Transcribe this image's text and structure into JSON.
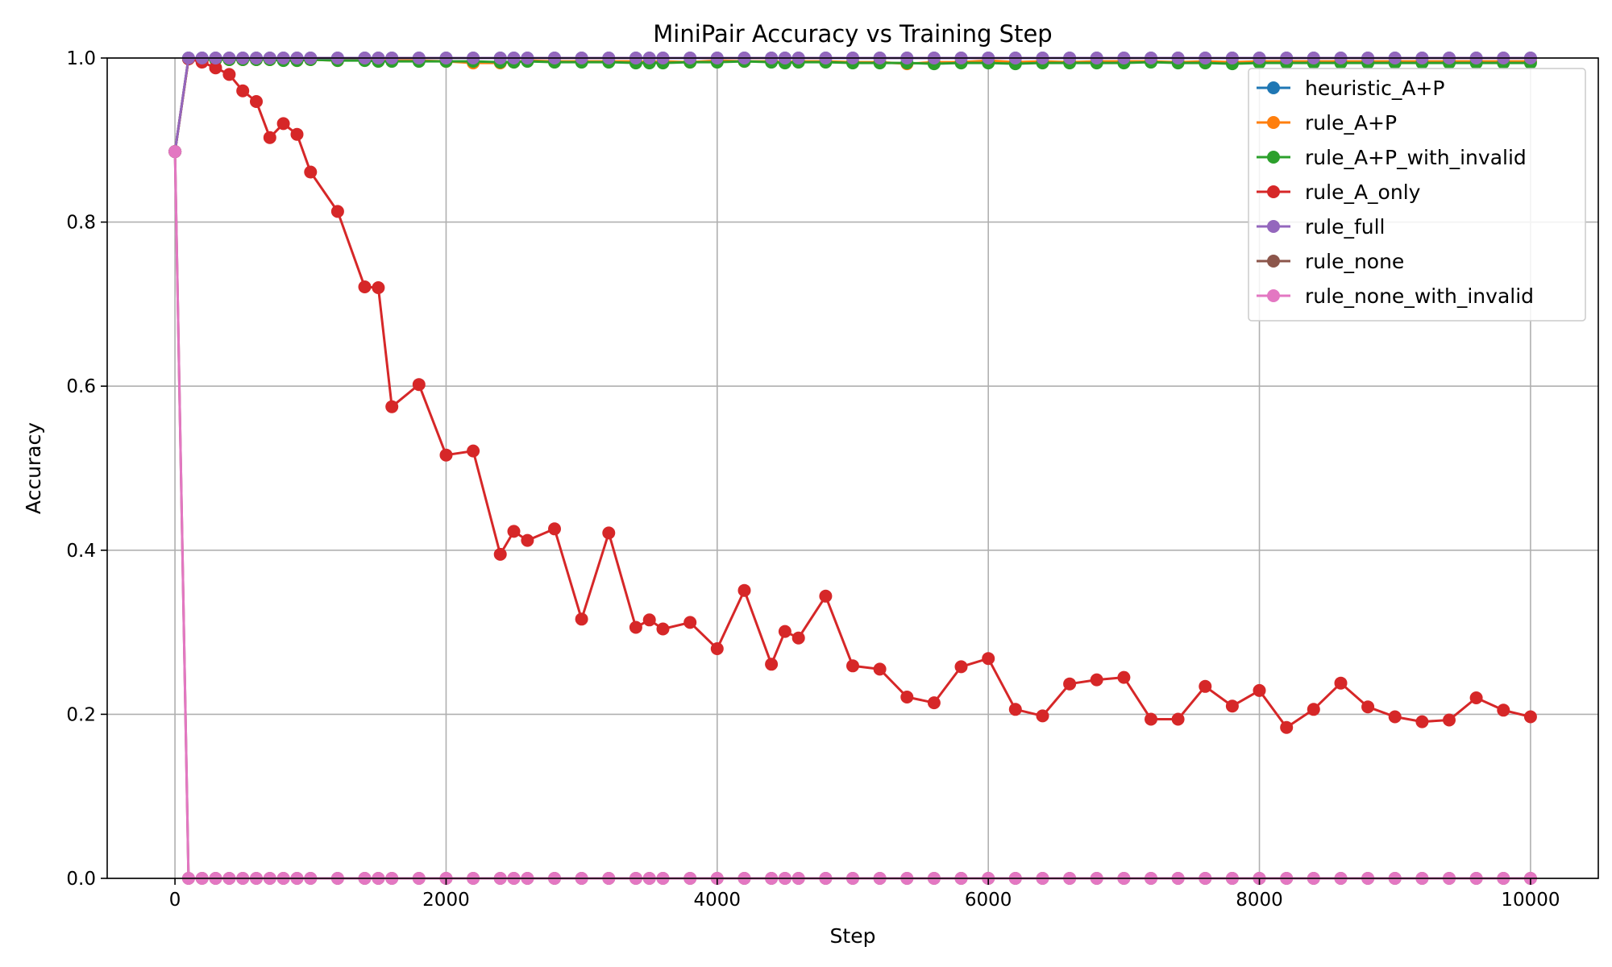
{
  "chart_data": {
    "type": "line",
    "title": "MiniPair Accuracy vs Training Step",
    "xlabel": "Step",
    "ylabel": "Accuracy",
    "xlim": [
      -500,
      10500
    ],
    "ylim": [
      0,
      1
    ],
    "xticks": [
      0,
      2000,
      4000,
      6000,
      8000,
      10000
    ],
    "xtick_labels": [
      "0",
      "2000",
      "4000",
      "6000",
      "8000",
      "10000"
    ],
    "yticks": [
      0.0,
      0.2,
      0.4,
      0.6,
      0.8,
      1.0
    ],
    "ytick_labels": [
      "0.0",
      "0.2",
      "0.4",
      "0.6",
      "0.8",
      "1.0"
    ],
    "grid": true,
    "legend_position": "top-right",
    "x": [
      0,
      100,
      200,
      300,
      400,
      500,
      600,
      700,
      800,
      900,
      1000,
      1200,
      1400,
      1500,
      1600,
      1800,
      2000,
      2200,
      2400,
      2500,
      2600,
      2800,
      3000,
      3200,
      3400,
      3500,
      3600,
      3800,
      4000,
      4200,
      4400,
      4500,
      4600,
      4800,
      5000,
      5200,
      5400,
      5600,
      5800,
      6000,
      6200,
      6400,
      6600,
      6800,
      7000,
      7200,
      7400,
      7600,
      7800,
      8000,
      8200,
      8400,
      8600,
      8800,
      9000,
      9200,
      9400,
      9600,
      9800,
      10000
    ],
    "series": [
      {
        "name": "heuristic_A+P",
        "color": "#1f77b4",
        "values": [
          0.886,
          1.0,
          1.0,
          1.0,
          1.0,
          1.0,
          1.0,
          1.0,
          1.0,
          1.0,
          1.0,
          1.0,
          1.0,
          1.0,
          1.0,
          1.0,
          1.0,
          1.0,
          1.0,
          1.0,
          1.0,
          1.0,
          1.0,
          1.0,
          1.0,
          1.0,
          1.0,
          1.0,
          1.0,
          1.0,
          1.0,
          1.0,
          1.0,
          1.0,
          1.0,
          1.0,
          1.0,
          1.0,
          1.0,
          1.0,
          1.0,
          1.0,
          1.0,
          1.0,
          1.0,
          1.0,
          1.0,
          1.0,
          1.0,
          1.0,
          1.0,
          1.0,
          1.0,
          1.0,
          1.0,
          1.0,
          1.0,
          1.0,
          1.0,
          1.0
        ]
      },
      {
        "name": "rule_A+P",
        "color": "#ff7f0e",
        "values": [
          0.886,
          0.999,
          0.999,
          0.998,
          0.998,
          0.998,
          0.998,
          0.998,
          0.998,
          0.997,
          0.998,
          0.997,
          0.998,
          0.997,
          0.997,
          0.997,
          0.996,
          0.994,
          0.994,
          0.995,
          0.997,
          0.996,
          0.996,
          0.996,
          0.996,
          0.995,
          0.996,
          0.995,
          0.997,
          0.996,
          0.996,
          0.995,
          0.996,
          0.996,
          0.995,
          0.995,
          0.993,
          0.995,
          0.995,
          0.997,
          0.995,
          0.996,
          0.995,
          0.996,
          0.996,
          0.996,
          0.995,
          0.996,
          0.995,
          0.996,
          0.996,
          0.996,
          0.996,
          0.996,
          0.996,
          0.996,
          0.996,
          0.996,
          0.996,
          0.996
        ]
      },
      {
        "name": "rule_A+P_with_invalid",
        "color": "#2ca02c",
        "values": [
          0.886,
          0.999,
          0.998,
          0.998,
          0.998,
          0.998,
          0.998,
          0.998,
          0.997,
          0.997,
          0.998,
          0.997,
          0.997,
          0.996,
          0.996,
          0.996,
          0.996,
          0.996,
          0.995,
          0.995,
          0.996,
          0.995,
          0.995,
          0.995,
          0.994,
          0.994,
          0.994,
          0.995,
          0.995,
          0.996,
          0.995,
          0.994,
          0.995,
          0.995,
          0.994,
          0.994,
          0.994,
          0.993,
          0.994,
          0.994,
          0.993,
          0.994,
          0.994,
          0.994,
          0.994,
          0.995,
          0.994,
          0.994,
          0.993,
          0.994,
          0.994,
          0.994,
          0.994,
          0.994,
          0.994,
          0.994,
          0.994,
          0.994,
          0.994,
          0.994
        ]
      },
      {
        "name": "rule_A_only",
        "color": "#d62728",
        "values": [
          0.886,
          0.999,
          0.995,
          0.988,
          0.98,
          0.96,
          0.947,
          0.903,
          0.92,
          0.907,
          0.861,
          0.813,
          0.721,
          0.72,
          0.575,
          0.602,
          0.516,
          0.521,
          0.395,
          0.423,
          0.412,
          0.426,
          0.316,
          0.421,
          0.306,
          0.315,
          0.304,
          0.312,
          0.28,
          0.351,
          0.261,
          0.301,
          0.293,
          0.344,
          0.259,
          0.255,
          0.221,
          0.214,
          0.258,
          0.268,
          0.206,
          0.198,
          0.237,
          0.242,
          0.245,
          0.194,
          0.194,
          0.234,
          0.21,
          0.229,
          0.184,
          0.206,
          0.238,
          0.209,
          0.197,
          0.191,
          0.193,
          0.22,
          0.205,
          0.197
        ]
      },
      {
        "name": "rule_full",
        "color": "#9467bd",
        "values": [
          0.886,
          1.0,
          1.0,
          1.0,
          1.0,
          1.0,
          1.0,
          1.0,
          1.0,
          1.0,
          1.0,
          1.0,
          1.0,
          1.0,
          1.0,
          1.0,
          1.0,
          1.0,
          1.0,
          1.0,
          1.0,
          1.0,
          1.0,
          1.0,
          1.0,
          1.0,
          1.0,
          1.0,
          1.0,
          1.0,
          1.0,
          1.0,
          1.0,
          1.0,
          1.0,
          1.0,
          1.0,
          1.0,
          1.0,
          1.0,
          1.0,
          1.0,
          1.0,
          1.0,
          1.0,
          1.0,
          1.0,
          1.0,
          1.0,
          1.0,
          1.0,
          1.0,
          1.0,
          1.0,
          1.0,
          1.0,
          1.0,
          1.0,
          1.0,
          1.0
        ]
      },
      {
        "name": "rule_none",
        "color": "#8c564b",
        "values": [
          0.886,
          0.0,
          0.0,
          0.0,
          0.0,
          0.0,
          0.0,
          0.0,
          0.0,
          0.0,
          0.0,
          0.0,
          0.0,
          0.0,
          0.0,
          0.0,
          0.0,
          0.0,
          0.0,
          0.0,
          0.0,
          0.0,
          0.0,
          0.0,
          0.0,
          0.0,
          0.0,
          0.0,
          0.0,
          0.0,
          0.0,
          0.0,
          0.0,
          0.0,
          0.0,
          0.0,
          0.0,
          0.0,
          0.0,
          0.0,
          0.0,
          0.0,
          0.0,
          0.0,
          0.0,
          0.0,
          0.0,
          0.0,
          0.0,
          0.0,
          0.0,
          0.0,
          0.0,
          0.0,
          0.0,
          0.0,
          0.0,
          0.0,
          0.0,
          0.0
        ]
      },
      {
        "name": "rule_none_with_invalid",
        "color": "#e377c2",
        "values": [
          0.886,
          0.0,
          0.0,
          0.0,
          0.0,
          0.0,
          0.0,
          0.0,
          0.0,
          0.0,
          0.0,
          0.0,
          0.0,
          0.0,
          0.0,
          0.0,
          0.0,
          0.0,
          0.0,
          0.0,
          0.0,
          0.0,
          0.0,
          0.0,
          0.0,
          0.0,
          0.0,
          0.0,
          0.0,
          0.0,
          0.0,
          0.0,
          0.0,
          0.0,
          0.0,
          0.0,
          0.0,
          0.0,
          0.0,
          0.0,
          0.0,
          0.0,
          0.0,
          0.0,
          0.0,
          0.0,
          0.0,
          0.0,
          0.0,
          0.0,
          0.0,
          0.0,
          0.0,
          0.0,
          0.0,
          0.0,
          0.0,
          0.0,
          0.0,
          0.0
        ]
      }
    ]
  }
}
